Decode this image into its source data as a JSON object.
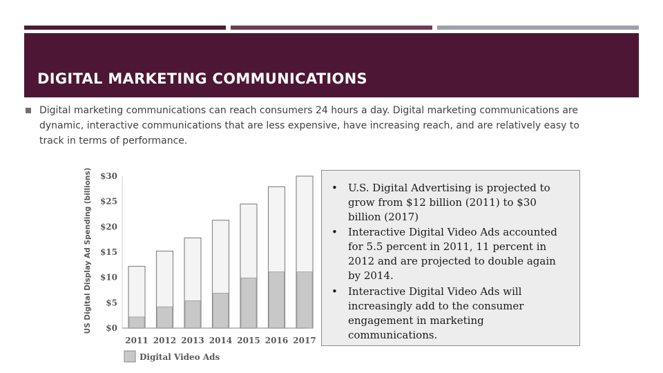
{
  "slide": {
    "title": "DIGITAL MARKETING COMMUNICATIONS",
    "body": "Digital marketing communications can reach consumers 24 hours a day. Digital marketing communications are dynamic, interactive communications that are less expensive, have increasing reach, and are relatively easy to track in terms of performance."
  },
  "info_box": {
    "bullet": "•",
    "items": [
      "U.S. Digital Advertising is projected to grow from $12 billion (2011) to $30 billion (2017)",
      "Interactive Digital Video Ads accounted for 5.5 percent in 2011, 11 percent in 2012 and are projected to double again by 2014.",
      "Interactive Digital Video Ads will increasingly add to the consumer engagement in marketing communications."
    ]
  },
  "colors": {
    "title_band": "#4d1635",
    "accent_1": "#4d1a35",
    "accent_2": "#6f3a56",
    "accent_3": "#9aa3ab",
    "total_bar_fill": "#f4f4f4",
    "video_bar_fill": "#c8c8c8"
  },
  "chart_data": {
    "type": "bar",
    "categories": [
      "2011",
      "2012",
      "2013",
      "2014",
      "2015",
      "2016",
      "2017"
    ],
    "series": [
      {
        "name": "",
        "values": [
          12.2,
          15.2,
          17.8,
          21.3,
          24.5,
          27.9,
          30.0
        ]
      },
      {
        "name": "Digital Video Ads",
        "values": [
          2.2,
          4.2,
          5.4,
          6.9,
          9.9,
          11.1,
          11.1
        ]
      }
    ],
    "ylabel": "US Digital Display Ad Spending (billions)",
    "yticks": [
      0,
      5,
      10,
      15,
      20,
      25,
      30
    ],
    "ytick_labels": [
      "$0",
      "$5",
      "$10",
      "$15",
      "$20",
      "$25",
      "$30"
    ],
    "ylim": [
      0,
      30
    ],
    "legend": {
      "label": "Digital Video Ads",
      "position": "bottom-left"
    },
    "grid": false
  }
}
